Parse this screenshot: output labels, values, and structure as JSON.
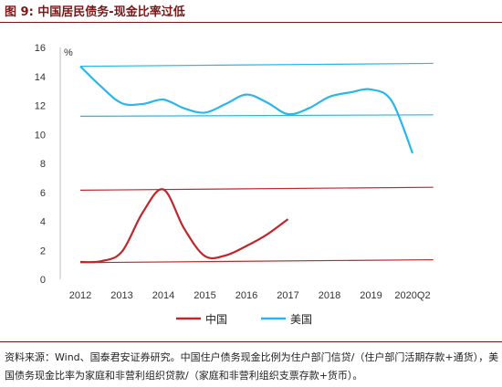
{
  "figure": {
    "title": "图 9:  中国居民债务-现金比率过低",
    "source_text": "资料来源：Wind、国泰君安证券研究。中国住户债务现金比例为住户部门信贷/（住户部门活期存款+通货），美国债务现金比率为家庭和非营利组织贷款/（家庭和非营利组织支票存款+货币）。"
  },
  "chart_data": {
    "type": "line",
    "unit_label": "%",
    "categories": [
      "2012",
      "2013",
      "2014",
      "2015",
      "2016",
      "2017",
      "2018",
      "2019",
      "2020Q2"
    ],
    "ylim": [
      0,
      16
    ],
    "yticks": [
      0,
      2,
      4,
      6,
      8,
      10,
      12,
      14,
      16
    ],
    "grid": false,
    "legend_position": "bottom",
    "series": [
      {
        "name": "中国",
        "color": "#c0272d",
        "points": [
          [
            0.0,
            1.2
          ],
          [
            0.5,
            1.25
          ],
          [
            1.0,
            1.9
          ],
          [
            1.5,
            4.6
          ],
          [
            2.0,
            6.2
          ],
          [
            2.5,
            3.5
          ],
          [
            3.0,
            1.6
          ],
          [
            3.5,
            1.65
          ],
          [
            4.0,
            2.3
          ],
          [
            4.5,
            3.1
          ],
          [
            5.0,
            4.15
          ]
        ],
        "trend_lines": [
          {
            "from": [
              0.0,
              1.15
            ],
            "to": [
              8.5,
              1.35
            ]
          },
          {
            "from": [
              0.0,
              6.15
            ],
            "to": [
              8.5,
              6.35
            ]
          }
        ]
      },
      {
        "name": "美国",
        "color": "#29b6e8",
        "points": [
          [
            0.0,
            14.7
          ],
          [
            0.5,
            13.3
          ],
          [
            1.0,
            12.15
          ],
          [
            1.5,
            12.1
          ],
          [
            2.0,
            12.4
          ],
          [
            2.5,
            11.8
          ],
          [
            3.0,
            11.5
          ],
          [
            3.5,
            12.1
          ],
          [
            4.0,
            12.75
          ],
          [
            4.5,
            12.2
          ],
          [
            5.0,
            11.4
          ],
          [
            5.5,
            11.8
          ],
          [
            6.0,
            12.6
          ],
          [
            6.5,
            12.9
          ],
          [
            7.0,
            13.1
          ],
          [
            7.5,
            12.3
          ],
          [
            8.0,
            8.7
          ]
        ],
        "trend_lines": [
          {
            "from": [
              0.0,
              14.7
            ],
            "to": [
              8.5,
              14.9
            ]
          },
          {
            "from": [
              0.0,
              11.25
            ],
            "to": [
              8.5,
              11.35
            ]
          }
        ]
      }
    ]
  }
}
